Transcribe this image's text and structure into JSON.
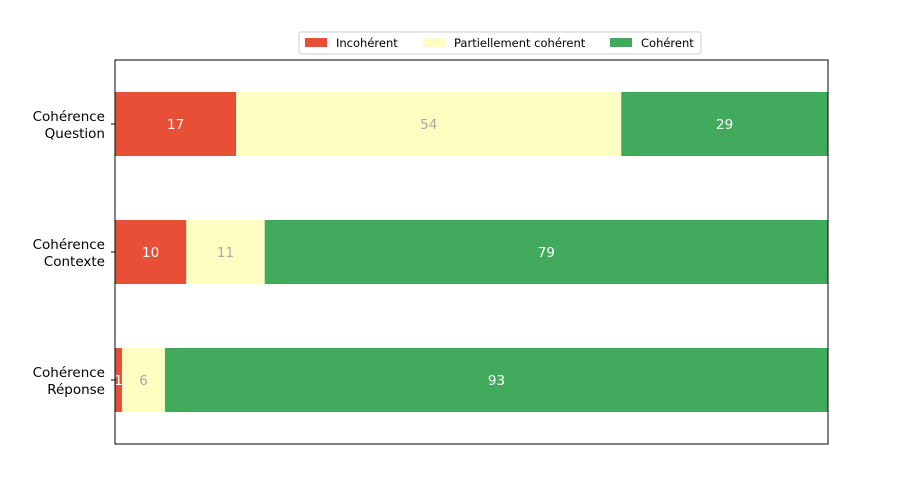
{
  "chart_data": {
    "type": "bar",
    "orientation": "horizontal",
    "stacked": true,
    "categories": [
      [
        "Cohérence",
        "Question"
      ],
      [
        "Cohérence",
        "Contexte"
      ],
      [
        "Cohérence",
        "Réponse"
      ]
    ],
    "series": [
      {
        "name": "Incohérent",
        "color": "#e74f37",
        "label_color": "#ffffff",
        "values": [
          17,
          10,
          1
        ]
      },
      {
        "name": "Partiellement cohérent",
        "color": "#fefdc2",
        "label_color": "#a9a9a9",
        "values": [
          54,
          11,
          6
        ]
      },
      {
        "name": "Cohérent",
        "color": "#41aa5d",
        "label_color": "#ffffff",
        "values": [
          29,
          79,
          93
        ]
      }
    ],
    "xlim": [
      0,
      100
    ],
    "xticks_visible": false,
    "grid": false,
    "legend": {
      "placement": "top-center",
      "ncol": 3
    }
  }
}
